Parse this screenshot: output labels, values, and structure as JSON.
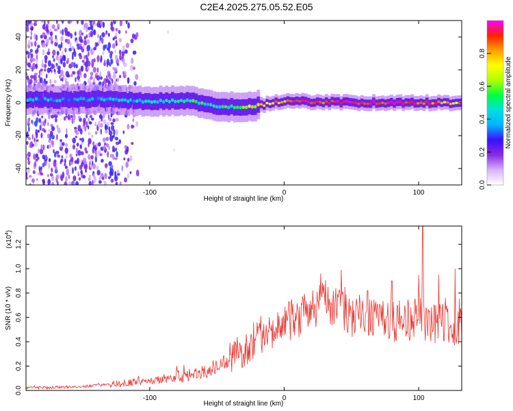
{
  "title": "C2E4.2025.275.05.52.E05",
  "chart_data": [
    {
      "type": "heatmap",
      "xlabel": "Height of straight line (km)",
      "ylabel": "Frequency (Hz)",
      "xlim": [
        -192,
        132
      ],
      "ylim": [
        -50,
        50
      ],
      "xticks": [
        -100,
        0,
        100
      ],
      "yticks": [
        -40,
        -20,
        0,
        20,
        40
      ],
      "colorbar": {
        "label": "Normalized spectral amplitude",
        "range": [
          0.0,
          1.0
        ],
        "ticks": [
          "0.0",
          "0.2",
          "0.4",
          "0.6",
          "0.8"
        ],
        "tick_values": [
          0.0,
          0.2,
          0.4,
          0.6,
          0.8
        ],
        "colormap": [
          "#ffffff",
          "#d9b3ff",
          "#8a2be2",
          "#3a10ff",
          "#00b4ff",
          "#00e0e0",
          "#00ff40",
          "#b0ff00",
          "#ffff00",
          "#ffa000",
          "#ff2000",
          "#ff00ff"
        ]
      },
      "description_free_ridge": {
        "center_freq_hz": [
          [
            -130,
            2
          ],
          [
            -100,
            1
          ],
          [
            -70,
            1
          ],
          [
            -50,
            -2
          ],
          [
            -30,
            -3
          ],
          [
            0,
            1
          ],
          [
            50,
            0
          ],
          [
            100,
            0
          ],
          [
            130,
            0
          ]
        ],
        "amplitude": [
          [
            -130,
            0.35
          ],
          [
            -100,
            0.45
          ],
          [
            -70,
            0.5
          ],
          [
            -50,
            0.45
          ],
          [
            -20,
            0.7
          ],
          [
            0,
            0.85
          ],
          [
            50,
            0.95
          ],
          [
            100,
            0.9
          ],
          [
            130,
            0.7
          ]
        ]
      }
    },
    {
      "type": "line",
      "xlabel": "Height of straight line (km)",
      "ylabel": "SNR (10 * v/v)",
      "scale_label": "(x10",
      "scale_exp": "4",
      "scale_close": ")",
      "xlim": [
        -192,
        132
      ],
      "ylim": [
        0,
        1.35
      ],
      "xticks": [
        -100,
        0,
        100
      ],
      "yticks": [
        "0.0",
        "0.2",
        "0.4",
        "0.6",
        "0.8",
        "1.0",
        "1.2"
      ],
      "ytick_values": [
        0.0,
        0.2,
        0.4,
        0.6,
        0.8,
        1.0,
        1.2
      ],
      "line_color": "#e8302a",
      "trend": [
        [
          -192,
          0.02
        ],
        [
          -150,
          0.03
        ],
        [
          -120,
          0.06
        ],
        [
          -100,
          0.08
        ],
        [
          -80,
          0.1
        ],
        [
          -60,
          0.15
        ],
        [
          -40,
          0.25
        ],
        [
          -20,
          0.4
        ],
        [
          0,
          0.55
        ],
        [
          20,
          0.65
        ],
        [
          30,
          0.75
        ],
        [
          50,
          0.62
        ],
        [
          80,
          0.55
        ],
        [
          100,
          0.6
        ],
        [
          115,
          0.55
        ],
        [
          132,
          0.55
        ]
      ],
      "peaks": [
        [
          -60,
          0.18
        ],
        [
          -35,
          0.44
        ],
        [
          -20,
          0.56
        ],
        [
          5,
          0.72
        ],
        [
          27,
          0.96
        ],
        [
          45,
          0.85
        ],
        [
          62,
          0.82
        ],
        [
          80,
          0.9
        ],
        [
          100,
          0.95
        ],
        [
          103,
          1.35
        ],
        [
          115,
          0.95
        ],
        [
          127,
          1.0
        ]
      ]
    }
  ]
}
